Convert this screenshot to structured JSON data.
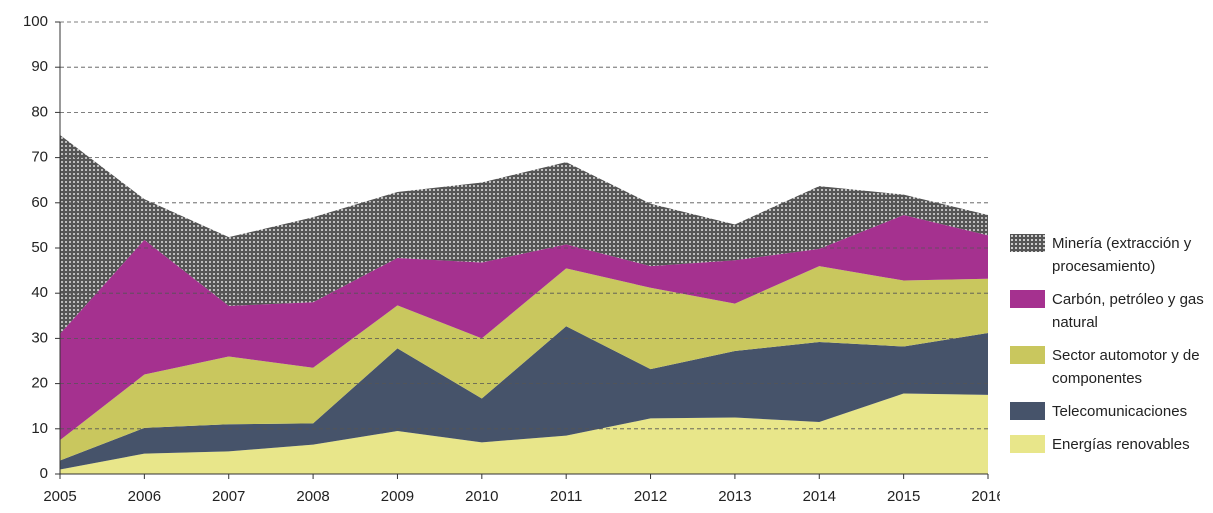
{
  "chart_data": {
    "type": "stacked_area",
    "categories": [
      "2005",
      "2006",
      "2007",
      "2008",
      "2009",
      "2010",
      "2011",
      "2012",
      "2013",
      "2014",
      "2015",
      "2016"
    ],
    "series": [
      {
        "name": "Energías renovables",
        "color": "#e8e68a",
        "values": [
          1,
          4.5,
          5,
          6.5,
          9.5,
          7,
          8.5,
          12.3,
          12.5,
          11.5,
          17.8,
          17.5
        ]
      },
      {
        "name": "Telecomunicaciones",
        "color": "#46536a",
        "values": [
          2,
          5.7,
          6,
          4.7,
          18.3,
          9.7,
          24.2,
          10.9,
          14.7,
          17.7,
          10.4,
          13.7
        ]
      },
      {
        "name": "Sector automotor y de componentes",
        "color": "#c9c75e",
        "values": [
          4.5,
          11.8,
          15,
          12.3,
          9.5,
          13.3,
          12.8,
          18,
          10.5,
          16.8,
          14.6,
          12
        ]
      },
      {
        "name": "Carbón, petróleo y gas natural",
        "color": "#a5318f",
        "values": [
          23.5,
          29.8,
          11.2,
          14.5,
          10.5,
          16.8,
          5.3,
          4.8,
          9.6,
          3.8,
          14.5,
          9.6
        ]
      },
      {
        "name": "Minería (extracción y procesamiento)",
        "color": "#555555",
        "pattern": "dots",
        "values": [
          44,
          9,
          15.2,
          18.8,
          14.6,
          17.7,
          18.2,
          13.8,
          7.9,
          13.9,
          4.5,
          4.5
        ]
      }
    ],
    "ylim": [
      0,
      100
    ],
    "yticks": [
      0,
      10,
      20,
      30,
      40,
      50,
      60,
      70,
      80,
      90,
      100
    ],
    "grid": true,
    "legend": "right"
  }
}
